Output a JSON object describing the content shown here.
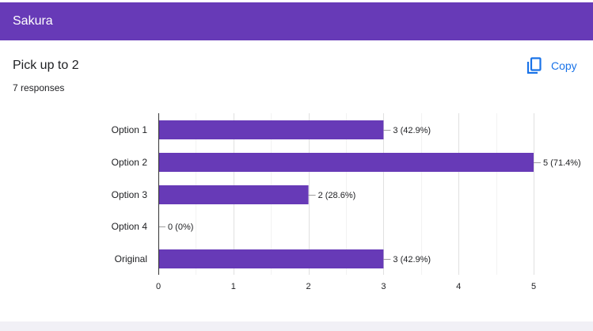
{
  "header": {
    "title": "Sakura"
  },
  "question": {
    "title": "Pick up to 2",
    "responses": "7 responses",
    "copy_label": "Copy"
  },
  "colors": {
    "accent": "#673ab7",
    "link": "#1a73e8"
  },
  "icons": {
    "copy": "copy-icon"
  },
  "chart_data": {
    "type": "bar",
    "orientation": "horizontal",
    "categories": [
      "Option 1",
      "Option 2",
      "Option 3",
      "Option 4",
      "Original"
    ],
    "values": [
      3,
      5,
      2,
      0,
      3
    ],
    "labels": [
      "3 (42.9%)",
      "5 (71.4%)",
      "2 (28.6%)",
      "0 (0%)",
      "3 (42.9%)"
    ],
    "xticks": [
      "0",
      "1",
      "2",
      "3",
      "4",
      "5"
    ],
    "xlim": [
      0,
      5
    ],
    "grid": true,
    "color": "#673ab7"
  }
}
